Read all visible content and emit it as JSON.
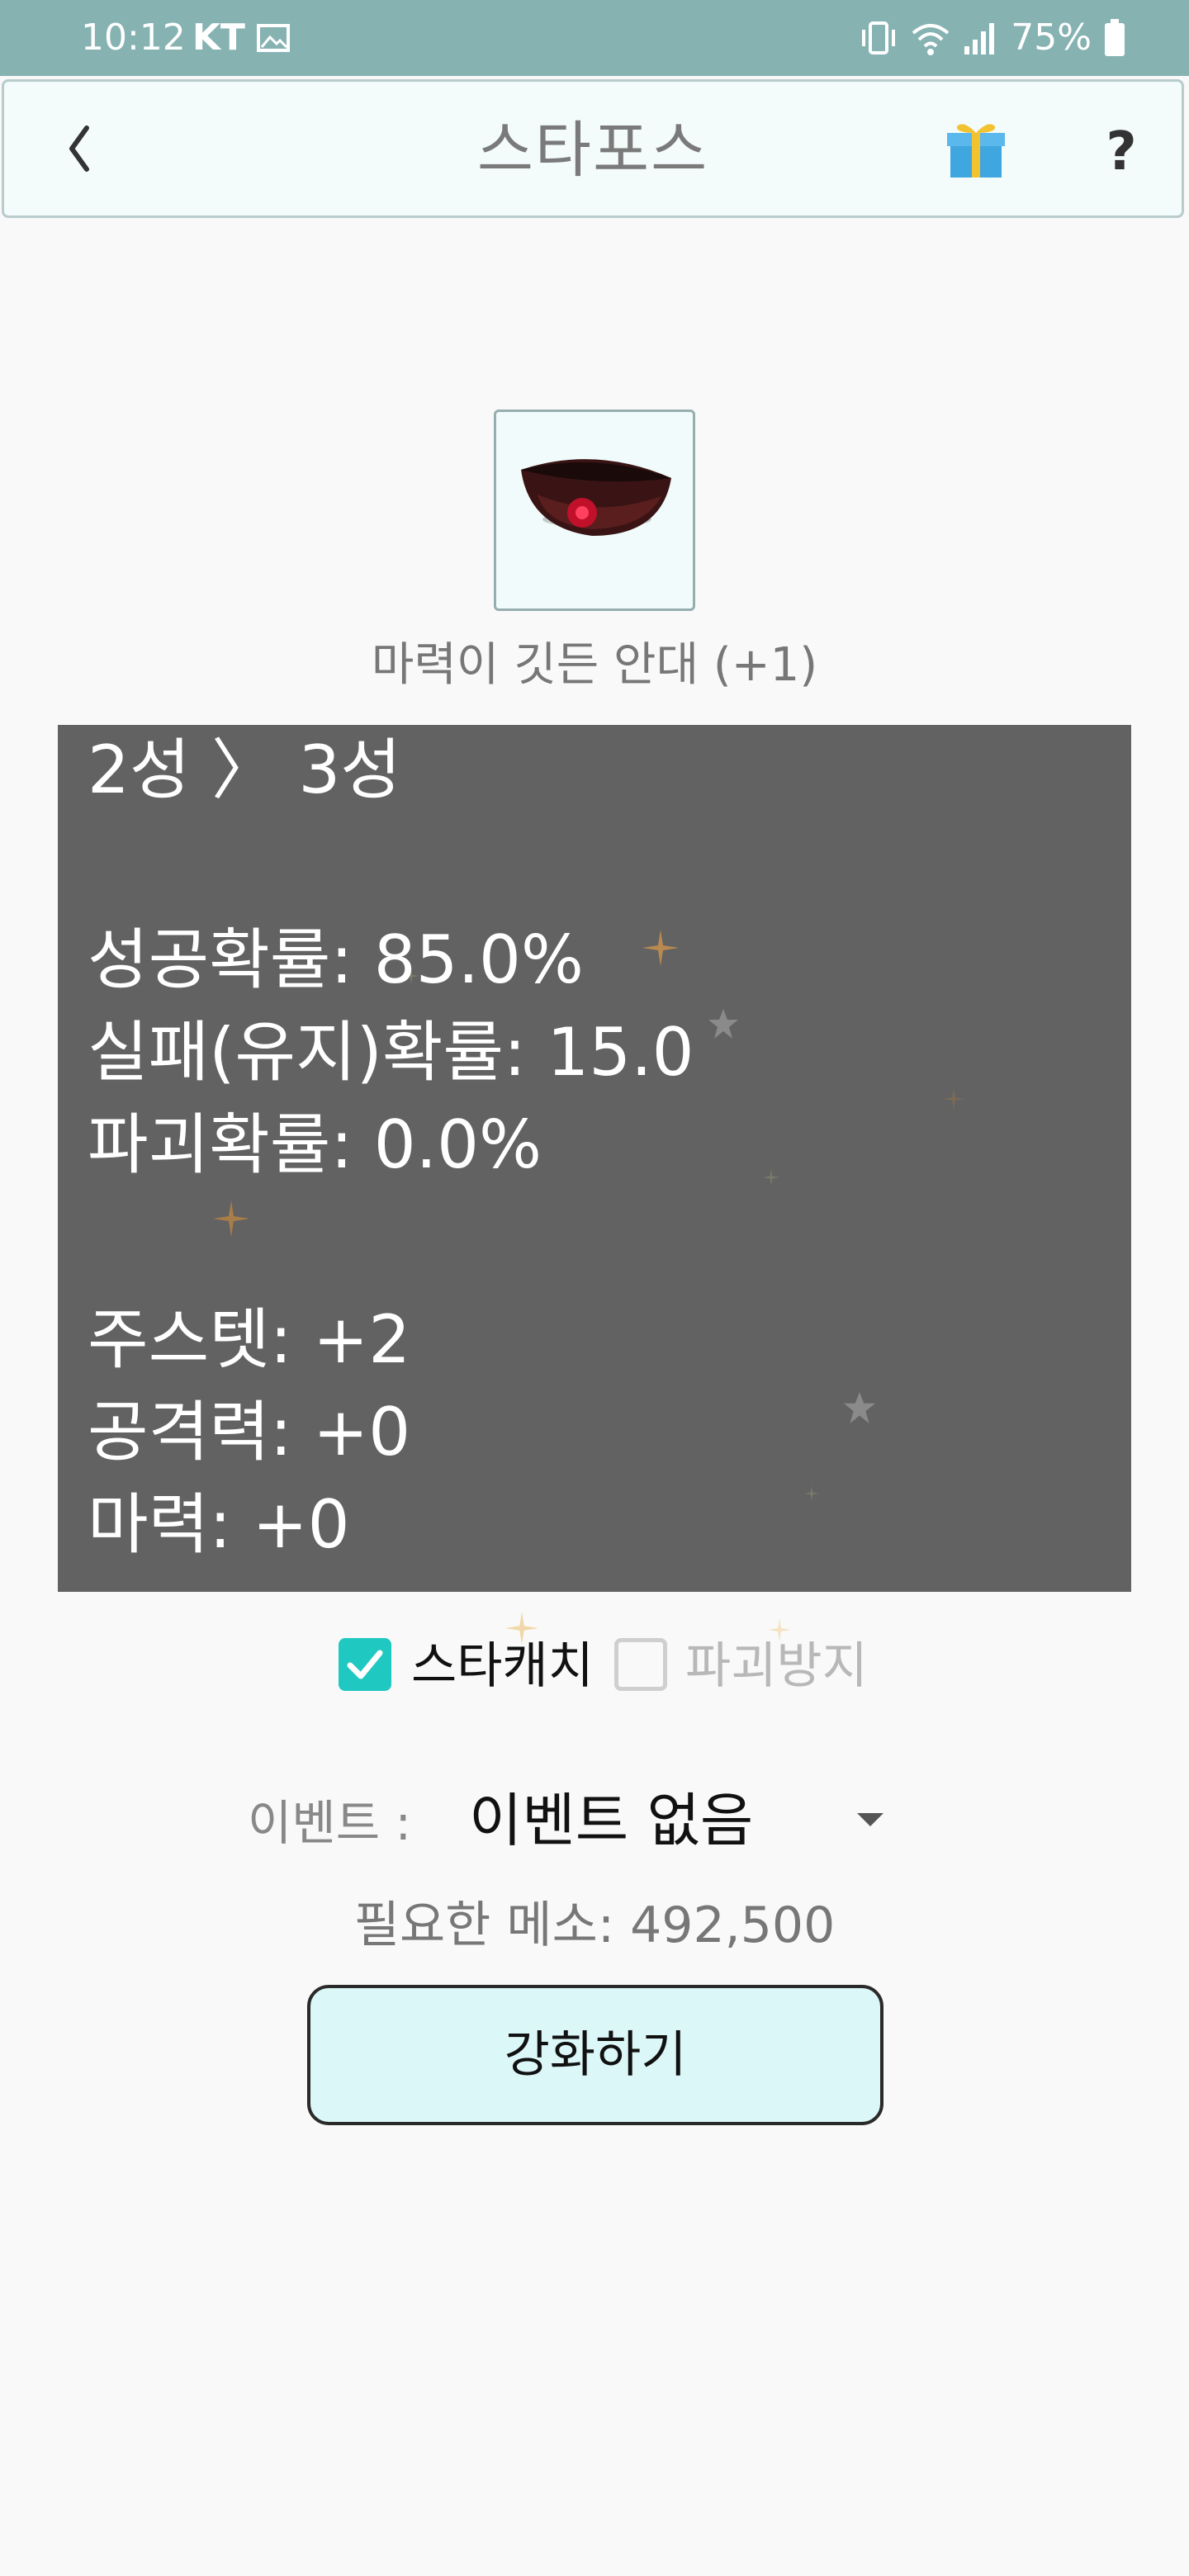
{
  "status_bar": {
    "time": "10:12",
    "carrier": "KT",
    "battery": "75%",
    "icons": [
      "gallery-icon",
      "vibrate-icon",
      "wifi-icon",
      "signal-icon",
      "battery-icon"
    ]
  },
  "app_bar": {
    "title": "스타포스",
    "back_icon": "chevron-left-icon",
    "gift_icon": "gift-icon",
    "help_label": "?"
  },
  "item": {
    "name": "마력이 깃든 안대 (+1)",
    "image": "eyepatch-item-icon"
  },
  "stats": {
    "lines": [
      "2성 〉 3성",
      "",
      "성공확률: 85.0%",
      "실패(유지)확률: 15.0",
      "파괴확률: 0.0%",
      "",
      "주스텟: +2",
      "공격력: +0",
      "마력: +0"
    ]
  },
  "options": {
    "starcatch_label": "스타캐치",
    "starcatch_checked": true,
    "protect_label": "파괴방지",
    "protect_checked": false,
    "protect_enabled": false
  },
  "event": {
    "label": "이벤트 :",
    "selected": "이벤트 없음"
  },
  "cost": {
    "label": "필요한 메소:",
    "value": "492,500"
  },
  "enhance_button": {
    "label": "강화하기"
  },
  "colors": {
    "status_bar": "#86b2b2",
    "app_bar_bg": "#f3fbfb",
    "stats_panel": "#626262",
    "checkbox_accent": "#1fc8c0",
    "button_bg": "#dcf7f7"
  }
}
